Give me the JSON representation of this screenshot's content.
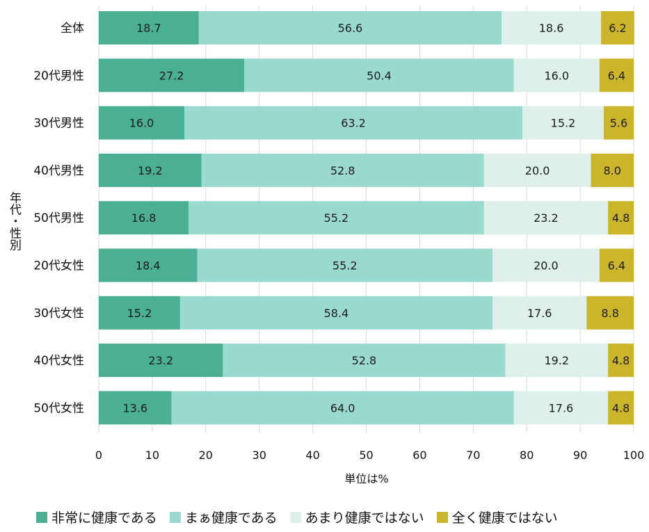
{
  "chart_data": {
    "type": "bar",
    "orientation": "horizontal",
    "stacked": true,
    "categories": [
      "全体",
      "20代男性",
      "30代男性",
      "40代男性",
      "50代男性",
      "20代女性",
      "30代女性",
      "40代女性",
      "50代女性"
    ],
    "series": [
      {
        "name": "非常に健康である",
        "color": "#4aaf93",
        "values": [
          18.7,
          27.2,
          16.0,
          19.2,
          16.8,
          18.4,
          15.2,
          23.2,
          13.6
        ]
      },
      {
        "name": "まぁ健康である",
        "color": "#9ad9cd",
        "values": [
          56.6,
          50.4,
          63.2,
          52.8,
          55.2,
          55.2,
          58.4,
          52.8,
          64.0
        ]
      },
      {
        "name": "あまり健康ではない",
        "color": "#dff0ec",
        "values": [
          18.6,
          16.0,
          15.2,
          20.0,
          23.2,
          20.0,
          17.6,
          19.2,
          17.6
        ]
      },
      {
        "name": "全く健康ではない",
        "color": "#cbb52a",
        "values": [
          6.2,
          6.4,
          5.6,
          8.0,
          4.8,
          6.4,
          8.8,
          4.8,
          4.8
        ]
      }
    ],
    "data_labels": [
      [
        "18.7",
        "27.2",
        "16.0",
        "19.2",
        "16.8",
        "18.4",
        "15.2",
        "23.2",
        "13.6"
      ],
      [
        "56.6",
        "50.4",
        "63.2",
        "52.8",
        "55.2",
        "55.2",
        "58.4",
        "52.8",
        "64.0"
      ],
      [
        "18.6",
        "16.0",
        "15.2",
        "20.0",
        "23.2",
        "20.0",
        "17.6",
        "19.2",
        "17.6"
      ],
      [
        "6.2",
        "6.4",
        "5.6",
        "8.0",
        "4.8",
        "6.4",
        "8.8",
        "4.8",
        "4.8"
      ]
    ],
    "xlim": [
      0,
      100
    ],
    "xticks": [
      "0",
      "10",
      "20",
      "30",
      "40",
      "50",
      "60",
      "70",
      "80",
      "90",
      "100"
    ],
    "xlabel": "単位は%",
    "ylabel": "年代・性別",
    "grid": true,
    "legend_position": "bottom"
  }
}
